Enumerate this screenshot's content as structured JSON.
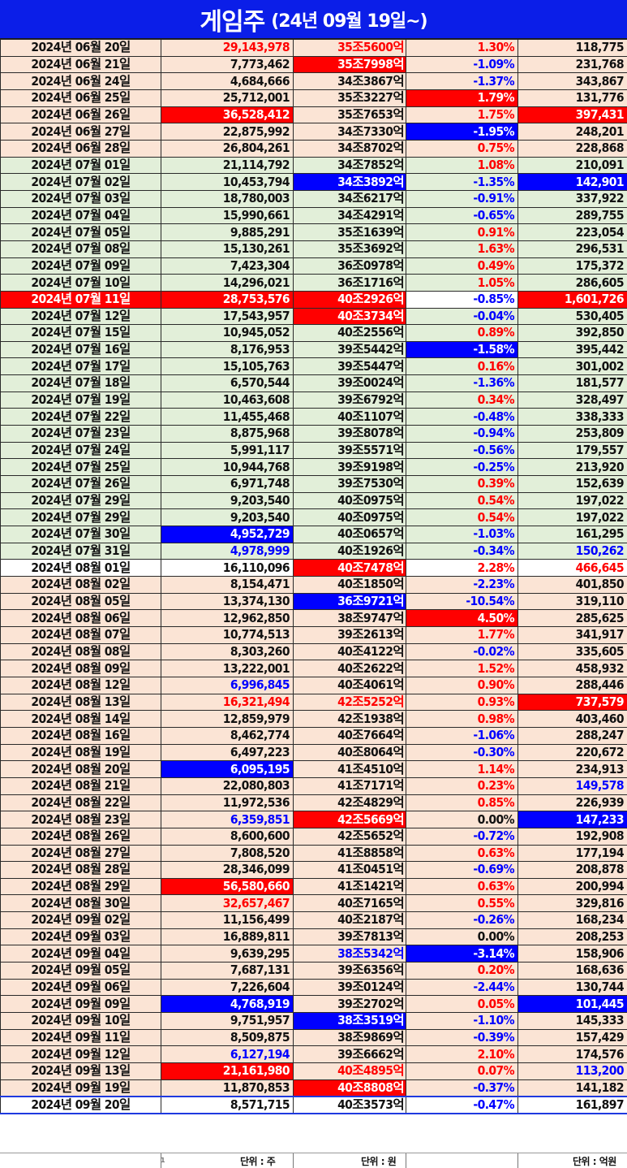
{
  "title": {
    "main": "게임주",
    "sub": "(24년 09월 19일~)"
  },
  "rows": [
    {
      "date": "2024년 06월 20일",
      "vol": "29,143,978",
      "cap": "35조5600억",
      "pct": "1.30%",
      "amt": "118,775",
      "bg": "peach",
      "vol_s": "t-red",
      "cap_s": "t-red",
      "pct_s": "t-red",
      "amt_s": ""
    },
    {
      "date": "2024년 06월 21일",
      "vol": "7,773,462",
      "cap": "35조7998억",
      "pct": "-1.09%",
      "amt": "231,768",
      "bg": "peach",
      "vol_s": "",
      "cap_s": "hl-red",
      "pct_s": "t-blue",
      "amt_s": ""
    },
    {
      "date": "2024년 06월 24일",
      "vol": "4,684,666",
      "cap": "34조3867억",
      "pct": "-1.37%",
      "amt": "343,867",
      "bg": "peach",
      "vol_s": "",
      "cap_s": "",
      "pct_s": "t-blue",
      "amt_s": ""
    },
    {
      "date": "2024년 06월 25일",
      "vol": "25,712,001",
      "cap": "35조3227억",
      "pct": "1.79%",
      "amt": "131,776",
      "bg": "peach",
      "vol_s": "",
      "cap_s": "",
      "pct_s": "hl-red",
      "amt_s": ""
    },
    {
      "date": "2024년 06월 26일",
      "vol": "36,528,412",
      "cap": "35조7653억",
      "pct": "1.75%",
      "amt": "397,431",
      "bg": "peach",
      "vol_s": "hl-red",
      "cap_s": "",
      "pct_s": "t-red",
      "amt_s": "hl-red"
    },
    {
      "date": "2024년 06월 27일",
      "vol": "22,875,992",
      "cap": "34조7330억",
      "pct": "-1.95%",
      "amt": "248,201",
      "bg": "peach",
      "vol_s": "",
      "cap_s": "",
      "pct_s": "hl-blue",
      "amt_s": ""
    },
    {
      "date": "2024년 06월 28일",
      "vol": "26,804,261",
      "cap": "34조8702억",
      "pct": "0.75%",
      "amt": "228,868",
      "bg": "peach",
      "vol_s": "",
      "cap_s": "",
      "pct_s": "t-red",
      "amt_s": ""
    },
    {
      "date": "2024년 07월 01일",
      "vol": "21,114,792",
      "cap": "34조7852억",
      "pct": "1.08%",
      "amt": "210,091",
      "bg": "green",
      "vol_s": "",
      "cap_s": "",
      "pct_s": "t-red",
      "amt_s": ""
    },
    {
      "date": "2024년 07월 02일",
      "vol": "10,453,794",
      "cap": "34조3892억",
      "pct": "-1.35%",
      "amt": "142,901",
      "bg": "green",
      "vol_s": "",
      "cap_s": "hl-blue",
      "pct_s": "t-blue",
      "amt_s": "hl-blue"
    },
    {
      "date": "2024년 07월 03일",
      "vol": "18,780,003",
      "cap": "34조6217억",
      "pct": "-0.91%",
      "amt": "337,922",
      "bg": "green",
      "vol_s": "",
      "cap_s": "",
      "pct_s": "t-blue",
      "amt_s": ""
    },
    {
      "date": "2024년 07월 04일",
      "vol": "15,990,661",
      "cap": "34조4291억",
      "pct": "-0.65%",
      "amt": "289,755",
      "bg": "green",
      "vol_s": "",
      "cap_s": "",
      "pct_s": "t-blue",
      "amt_s": ""
    },
    {
      "date": "2024년 07월 05일",
      "vol": "9,885,291",
      "cap": "35조1639억",
      "pct": "0.91%",
      "amt": "223,054",
      "bg": "green",
      "vol_s": "",
      "cap_s": "",
      "pct_s": "t-red",
      "amt_s": ""
    },
    {
      "date": "2024년 07월 08일",
      "vol": "15,130,261",
      "cap": "35조3692억",
      "pct": "1.63%",
      "amt": "296,531",
      "bg": "green",
      "vol_s": "",
      "cap_s": "",
      "pct_s": "t-red",
      "amt_s": ""
    },
    {
      "date": "2024년 07월 09일",
      "vol": "7,423,304",
      "cap": "36조0978억",
      "pct": "0.49%",
      "amt": "175,372",
      "bg": "green",
      "vol_s": "",
      "cap_s": "",
      "pct_s": "t-red",
      "amt_s": ""
    },
    {
      "date": "2024년 07월 10일",
      "vol": "14,296,021",
      "cap": "36조1716억",
      "pct": "1.05%",
      "amt": "286,605",
      "bg": "green",
      "vol_s": "",
      "cap_s": "",
      "pct_s": "t-red",
      "amt_s": ""
    },
    {
      "date": "2024년 07월 11일",
      "vol": "28,753,576",
      "cap": "40조2926억",
      "pct": "-0.85%",
      "amt": "1,601,726",
      "bg": "red",
      "vol_s": "",
      "cap_s": "",
      "pct_s": "pct-blue",
      "amt_s": ""
    },
    {
      "date": "2024년 07월 12일",
      "vol": "17,543,957",
      "cap": "40조3734억",
      "pct": "-0.04%",
      "amt": "530,405",
      "bg": "green",
      "vol_s": "",
      "cap_s": "hl-red",
      "pct_s": "t-blue",
      "amt_s": ""
    },
    {
      "date": "2024년 07월 15일",
      "vol": "10,945,052",
      "cap": "40조2556억",
      "pct": "0.89%",
      "amt": "392,850",
      "bg": "green",
      "vol_s": "",
      "cap_s": "",
      "pct_s": "t-red",
      "amt_s": ""
    },
    {
      "date": "2024년 07월 16일",
      "vol": "8,176,953",
      "cap": "39조5442억",
      "pct": "-1.58%",
      "amt": "395,442",
      "bg": "green",
      "vol_s": "",
      "cap_s": "",
      "pct_s": "hl-blue",
      "amt_s": ""
    },
    {
      "date": "2024년 07월 17일",
      "vol": "15,105,763",
      "cap": "39조5447억",
      "pct": "0.16%",
      "amt": "301,002",
      "bg": "green",
      "vol_s": "",
      "cap_s": "",
      "pct_s": "t-red",
      "amt_s": ""
    },
    {
      "date": "2024년 07월 18일",
      "vol": "6,570,544",
      "cap": "39조0024억",
      "pct": "-1.36%",
      "amt": "181,577",
      "bg": "green",
      "vol_s": "",
      "cap_s": "",
      "pct_s": "t-blue",
      "amt_s": ""
    },
    {
      "date": "2024년 07월 19일",
      "vol": "10,463,608",
      "cap": "39조6792억",
      "pct": "0.34%",
      "amt": "328,497",
      "bg": "green",
      "vol_s": "",
      "cap_s": "",
      "pct_s": "t-red",
      "amt_s": ""
    },
    {
      "date": "2024년 07월 22일",
      "vol": "11,455,468",
      "cap": "40조1107억",
      "pct": "-0.48%",
      "amt": "338,333",
      "bg": "green",
      "vol_s": "",
      "cap_s": "",
      "pct_s": "t-blue",
      "amt_s": ""
    },
    {
      "date": "2024년 07월 23일",
      "vol": "8,875,968",
      "cap": "39조8078억",
      "pct": "-0.94%",
      "amt": "253,809",
      "bg": "green",
      "vol_s": "",
      "cap_s": "",
      "pct_s": "t-blue",
      "amt_s": ""
    },
    {
      "date": "2024년 07월 24일",
      "vol": "5,991,117",
      "cap": "39조5571억",
      "pct": "-0.56%",
      "amt": "179,557",
      "bg": "green",
      "vol_s": "",
      "cap_s": "",
      "pct_s": "t-blue",
      "amt_s": ""
    },
    {
      "date": "2024년 07월 25일",
      "vol": "10,944,768",
      "cap": "39조9198억",
      "pct": "-0.25%",
      "amt": "213,920",
      "bg": "green",
      "vol_s": "",
      "cap_s": "",
      "pct_s": "t-blue",
      "amt_s": ""
    },
    {
      "date": "2024년 07월 26일",
      "vol": "6,971,748",
      "cap": "39조7530억",
      "pct": "0.39%",
      "amt": "152,639",
      "bg": "green",
      "vol_s": "",
      "cap_s": "",
      "pct_s": "t-red",
      "amt_s": ""
    },
    {
      "date": "2024년 07월 29일",
      "vol": "9,203,540",
      "cap": "40조0975억",
      "pct": "0.54%",
      "amt": "197,022",
      "bg": "green",
      "vol_s": "",
      "cap_s": "",
      "pct_s": "t-red",
      "amt_s": ""
    },
    {
      "date": "2024년 07월 29일",
      "vol": "9,203,540",
      "cap": "40조0975억",
      "pct": "0.54%",
      "amt": "197,022",
      "bg": "green",
      "vol_s": "",
      "cap_s": "",
      "pct_s": "t-red",
      "amt_s": ""
    },
    {
      "date": "2024년 07월 30일",
      "vol": "4,952,729",
      "cap": "40조0657억",
      "pct": "-1.03%",
      "amt": "161,295",
      "bg": "green",
      "vol_s": "hl-blue",
      "cap_s": "",
      "pct_s": "t-blue",
      "amt_s": ""
    },
    {
      "date": "2024년 07월 31일",
      "vol": "4,978,999",
      "cap": "40조1926억",
      "pct": "-0.34%",
      "amt": "150,262",
      "bg": "green",
      "vol_s": "t-blue",
      "cap_s": "",
      "pct_s": "t-blue",
      "amt_s": "t-blue"
    },
    {
      "date": "2024년 08월 01일",
      "vol": "16,110,096",
      "cap": "40조7478억",
      "pct": "2.28%",
      "amt": "466,645",
      "bg": "white",
      "vol_s": "",
      "cap_s": "hl-red",
      "pct_s": "t-red",
      "amt_s": "t-red"
    },
    {
      "date": "2024년 08월 02일",
      "vol": "8,154,471",
      "cap": "40조1850억",
      "pct": "-2.23%",
      "amt": "401,850",
      "bg": "peach",
      "vol_s": "",
      "cap_s": "",
      "pct_s": "t-blue",
      "amt_s": ""
    },
    {
      "date": "2024년 08월 05일",
      "vol": "13,374,130",
      "cap": "36조9721억",
      "pct": "-10.54%",
      "amt": "319,110",
      "bg": "peach",
      "vol_s": "",
      "cap_s": "hl-blue",
      "pct_s": "t-blue",
      "amt_s": ""
    },
    {
      "date": "2024년 08월 06일",
      "vol": "12,962,850",
      "cap": "38조9747억",
      "pct": "4.50%",
      "amt": "285,625",
      "bg": "peach",
      "vol_s": "",
      "cap_s": "",
      "pct_s": "hl-red",
      "amt_s": ""
    },
    {
      "date": "2024년 08월 07일",
      "vol": "10,774,513",
      "cap": "39조2613억",
      "pct": "1.77%",
      "amt": "341,917",
      "bg": "peach",
      "vol_s": "",
      "cap_s": "",
      "pct_s": "t-red",
      "amt_s": ""
    },
    {
      "date": "2024년 08월 08일",
      "vol": "8,303,260",
      "cap": "40조4122억",
      "pct": "-0.02%",
      "amt": "335,605",
      "bg": "peach",
      "vol_s": "",
      "cap_s": "",
      "pct_s": "t-blue",
      "amt_s": ""
    },
    {
      "date": "2024년 08월 09일",
      "vol": "13,222,001",
      "cap": "40조2622억",
      "pct": "1.52%",
      "amt": "458,932",
      "bg": "peach",
      "vol_s": "",
      "cap_s": "",
      "pct_s": "t-red",
      "amt_s": ""
    },
    {
      "date": "2024년 08월 12일",
      "vol": "6,996,845",
      "cap": "40조4061억",
      "pct": "0.90%",
      "amt": "288,446",
      "bg": "peach",
      "vol_s": "t-blue",
      "cap_s": "",
      "pct_s": "t-red",
      "amt_s": ""
    },
    {
      "date": "2024년 08월 13일",
      "vol": "16,321,494",
      "cap": "42조5252억",
      "pct": "0.93%",
      "amt": "737,579",
      "bg": "peach",
      "vol_s": "t-red",
      "cap_s": "t-red",
      "pct_s": "t-red",
      "amt_s": "hl-red"
    },
    {
      "date": "2024년 08월 14일",
      "vol": "12,859,979",
      "cap": "42조1938억",
      "pct": "0.98%",
      "amt": "403,460",
      "bg": "peach",
      "vol_s": "",
      "cap_s": "",
      "pct_s": "t-red",
      "amt_s": ""
    },
    {
      "date": "2024년 08월 16일",
      "vol": "8,462,774",
      "cap": "40조7664억",
      "pct": "-1.06%",
      "amt": "288,247",
      "bg": "peach",
      "vol_s": "",
      "cap_s": "",
      "pct_s": "t-blue",
      "amt_s": ""
    },
    {
      "date": "2024년 08월 19일",
      "vol": "6,497,223",
      "cap": "40조8064억",
      "pct": "-0.30%",
      "amt": "220,672",
      "bg": "peach",
      "vol_s": "",
      "cap_s": "",
      "pct_s": "t-blue",
      "amt_s": ""
    },
    {
      "date": "2024년 08월 20일",
      "vol": "6,095,195",
      "cap": "41조4510억",
      "pct": "1.14%",
      "amt": "234,913",
      "bg": "peach",
      "vol_s": "hl-blue",
      "cap_s": "",
      "pct_s": "t-red",
      "amt_s": ""
    },
    {
      "date": "2024년 08월 21일",
      "vol": "22,080,803",
      "cap": "41조7171억",
      "pct": "0.23%",
      "amt": "149,578",
      "bg": "peach",
      "vol_s": "",
      "cap_s": "",
      "pct_s": "t-red",
      "amt_s": "t-blue"
    },
    {
      "date": "2024년 08월 22일",
      "vol": "11,972,536",
      "cap": "42조4829억",
      "pct": "0.85%",
      "amt": "226,939",
      "bg": "peach",
      "vol_s": "",
      "cap_s": "",
      "pct_s": "t-red",
      "amt_s": ""
    },
    {
      "date": "2024년 08월 23일",
      "vol": "6,359,851",
      "cap": "42조5669억",
      "pct": "0.00%",
      "amt": "147,233",
      "bg": "peach",
      "vol_s": "t-blue",
      "cap_s": "hl-red",
      "pct_s": "",
      "amt_s": "hl-blue"
    },
    {
      "date": "2024년 08월 26일",
      "vol": "8,600,600",
      "cap": "42조5652억",
      "pct": "-0.72%",
      "amt": "192,908",
      "bg": "peach",
      "vol_s": "",
      "cap_s": "",
      "pct_s": "t-blue",
      "amt_s": ""
    },
    {
      "date": "2024년 08월 27일",
      "vol": "7,808,520",
      "cap": "41조8858억",
      "pct": "0.63%",
      "amt": "177,194",
      "bg": "peach",
      "vol_s": "",
      "cap_s": "",
      "pct_s": "t-red",
      "amt_s": ""
    },
    {
      "date": "2024년 08월 28일",
      "vol": "28,346,099",
      "cap": "41조0451억",
      "pct": "-0.69%",
      "amt": "208,878",
      "bg": "peach",
      "vol_s": "",
      "cap_s": "",
      "pct_s": "t-blue",
      "amt_s": ""
    },
    {
      "date": "2024년 08월 29일",
      "vol": "56,580,660",
      "cap": "41조1421억",
      "pct": "0.63%",
      "amt": "200,994",
      "bg": "peach",
      "vol_s": "hl-red",
      "cap_s": "",
      "pct_s": "t-red",
      "amt_s": ""
    },
    {
      "date": "2024년 08월 30일",
      "vol": "32,657,467",
      "cap": "40조7165억",
      "pct": "0.55%",
      "amt": "329,816",
      "bg": "peach",
      "vol_s": "t-red",
      "cap_s": "",
      "pct_s": "t-red",
      "amt_s": ""
    },
    {
      "date": "2024년 09월 02일",
      "vol": "11,156,499",
      "cap": "40조2187억",
      "pct": "-0.26%",
      "amt": "168,234",
      "bg": "peach",
      "vol_s": "",
      "cap_s": "",
      "pct_s": "t-blue",
      "amt_s": ""
    },
    {
      "date": "2024년 09월 03일",
      "vol": "16,889,811",
      "cap": "39조7813억",
      "pct": "0.00%",
      "amt": "208,253",
      "bg": "peach",
      "vol_s": "",
      "cap_s": "",
      "pct_s": "",
      "amt_s": ""
    },
    {
      "date": "2024년 09월 04일",
      "vol": "9,639,295",
      "cap": "38조5342억",
      "pct": "-3.14%",
      "amt": "158,906",
      "bg": "peach",
      "vol_s": "",
      "cap_s": "t-blue",
      "pct_s": "hl-blue",
      "amt_s": ""
    },
    {
      "date": "2024년 09월 05일",
      "vol": "7,687,131",
      "cap": "39조6356억",
      "pct": "0.20%",
      "amt": "168,636",
      "bg": "peach",
      "vol_s": "",
      "cap_s": "",
      "pct_s": "t-red",
      "amt_s": ""
    },
    {
      "date": "2024년 09월 06일",
      "vol": "7,226,604",
      "cap": "39조0124억",
      "pct": "-2.44%",
      "amt": "130,744",
      "bg": "peach",
      "vol_s": "",
      "cap_s": "",
      "pct_s": "t-blue",
      "amt_s": ""
    },
    {
      "date": "2024년 09월 09일",
      "vol": "4,768,919",
      "cap": "39조2702억",
      "pct": "0.05%",
      "amt": "101,445",
      "bg": "peach",
      "vol_s": "hl-blue",
      "cap_s": "",
      "pct_s": "t-red",
      "amt_s": "hl-blue"
    },
    {
      "date": "2024년 09월 10일",
      "vol": "9,751,957",
      "cap": "38조3519억",
      "pct": "-1.10%",
      "amt": "145,333",
      "bg": "peach",
      "vol_s": "",
      "cap_s": "hl-blue",
      "pct_s": "t-blue",
      "amt_s": ""
    },
    {
      "date": "2024년 09월 11일",
      "vol": "8,509,875",
      "cap": "38조9869억",
      "pct": "-0.39%",
      "amt": "157,429",
      "bg": "peach",
      "vol_s": "",
      "cap_s": "",
      "pct_s": "t-blue",
      "amt_s": ""
    },
    {
      "date": "2024년 09월 12일",
      "vol": "6,127,194",
      "cap": "39조6662억",
      "pct": "2.10%",
      "amt": "174,576",
      "bg": "peach",
      "vol_s": "t-blue",
      "cap_s": "",
      "pct_s": "t-red",
      "amt_s": ""
    },
    {
      "date": "2024년 09월 13일",
      "vol": "21,161,980",
      "cap": "40조4895억",
      "pct": "0.07%",
      "amt": "113,200",
      "bg": "peach",
      "vol_s": "hl-red",
      "cap_s": "t-red",
      "pct_s": "t-red",
      "amt_s": "t-blue"
    },
    {
      "date": "2024년 09월 19일",
      "vol": "11,870,853",
      "cap": "40조8808억",
      "pct": "-0.37%",
      "amt": "141,182",
      "bg": "peach",
      "vol_s": "",
      "cap_s": "hl-red",
      "pct_s": "t-blue",
      "amt_s": ""
    },
    {
      "date": "2024년 09월 20일",
      "vol": "8,571,715",
      "cap": "40조3573억",
      "pct": "-0.47%",
      "amt": "161,897",
      "bg": "blueline",
      "vol_s": "",
      "cap_s": "",
      "pct_s": "t-blue",
      "amt_s": ""
    }
  ],
  "footer": {
    "mark": "1",
    "unit_vol": "단위 : 주",
    "unit_cap": "단위 : 원",
    "unit_amt": "단위 : 억원"
  }
}
